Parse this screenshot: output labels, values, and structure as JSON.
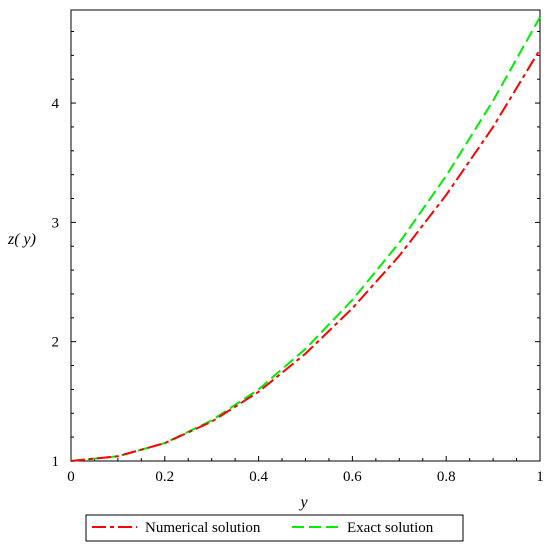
{
  "chart_data": {
    "type": "line",
    "title": "",
    "xlabel": "y",
    "ylabel": "z( y)",
    "xlim": [
      0,
      1
    ],
    "ylim": [
      1,
      4.78
    ],
    "grid": false,
    "legend_position": "bottom",
    "x_ticks": [
      {
        "value": 0,
        "label": "0"
      },
      {
        "value": 0.2,
        "label": "0.2"
      },
      {
        "value": 0.4,
        "label": "0.4"
      },
      {
        "value": 0.6,
        "label": "0.6"
      },
      {
        "value": 0.8,
        "label": "0.8"
      },
      {
        "value": 1,
        "label": "1"
      }
    ],
    "y_ticks": [
      {
        "value": 1,
        "label": "1"
      },
      {
        "value": 2,
        "label": "2"
      },
      {
        "value": 3,
        "label": "3"
      },
      {
        "value": 4,
        "label": "4"
      }
    ],
    "x": [
      0,
      0.1,
      0.2,
      0.3,
      0.4,
      0.5,
      0.6,
      0.7,
      0.8,
      0.9,
      1.0
    ],
    "series": [
      {
        "name": "Numerical solution",
        "color": "#ff0000",
        "line_style": "long-dash-dot",
        "values": [
          1.0,
          1.04,
          1.15,
          1.33,
          1.58,
          1.9,
          2.28,
          2.72,
          3.23,
          3.8,
          4.45
        ]
      },
      {
        "name": "Exact solution",
        "color": "#00ee00",
        "line_style": "dashed",
        "values": [
          1.0,
          1.04,
          1.15,
          1.34,
          1.6,
          1.94,
          2.35,
          2.83,
          3.39,
          4.02,
          4.72
        ]
      }
    ]
  }
}
